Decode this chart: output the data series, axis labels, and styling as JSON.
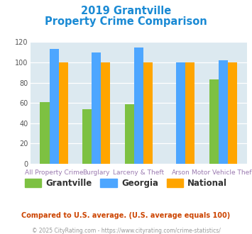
{
  "title_line1": "2019 Grantville",
  "title_line2": "Property Crime Comparison",
  "categories": [
    "All Property Crime",
    "Burglary",
    "Larceny & Theft",
    "Arson",
    "Motor Vehicle Theft"
  ],
  "top_labels": [
    "",
    "Burglary",
    "",
    "Arson",
    ""
  ],
  "bottom_labels": [
    "All Property Crime",
    "",
    "Larceny & Theft",
    "",
    "Motor Vehicle Theft"
  ],
  "grantville": [
    61,
    54,
    59,
    0,
    83
  ],
  "georgia": [
    113,
    110,
    115,
    100,
    102
  ],
  "national": [
    100,
    100,
    100,
    100,
    100
  ],
  "colors": {
    "grantville": "#7dc142",
    "georgia": "#4da6ff",
    "national": "#ffa500"
  },
  "ylim": [
    0,
    120
  ],
  "yticks": [
    0,
    20,
    40,
    60,
    80,
    100,
    120
  ],
  "title_color": "#1a8ad4",
  "label_color": "#9b7ab0",
  "legend_label_color": "#333333",
  "footnote1": "Compared to U.S. average. (U.S. average equals 100)",
  "footnote2": "© 2025 CityRating.com - https://www.cityrating.com/crime-statistics/",
  "footnote1_color": "#cc4400",
  "footnote2_color": "#999999",
  "background_color": "#dce9f0",
  "figure_background": "#ffffff",
  "bar_width": 0.22
}
